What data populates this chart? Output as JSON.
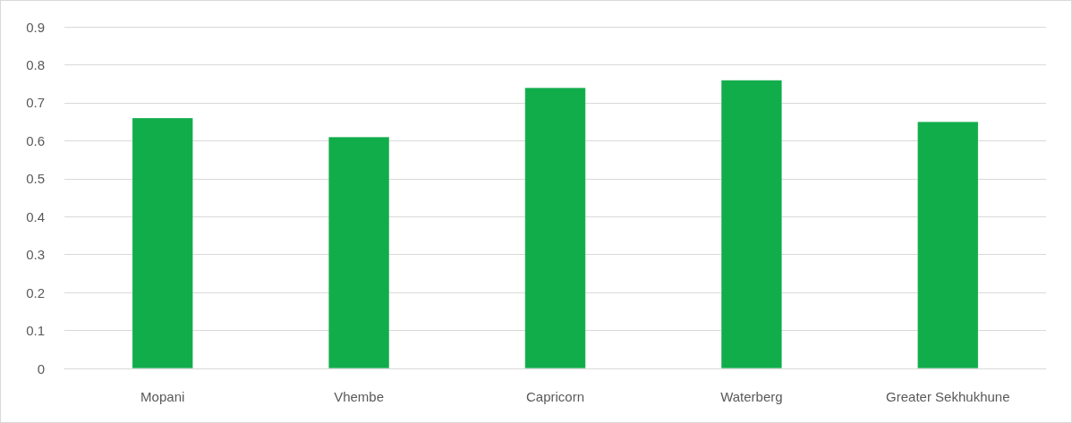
{
  "chart_data": {
    "type": "bar",
    "categories": [
      "Mopani",
      "Vhembe",
      "Capricorn",
      "Waterberg",
      "Greater Sekhukhune"
    ],
    "values": [
      0.66,
      0.61,
      0.74,
      0.76,
      0.65
    ],
    "color": "#12ad4b",
    "ylim": [
      0,
      0.9
    ],
    "yticks": [
      0,
      0.1,
      0.2,
      0.3,
      0.4,
      0.5,
      0.6,
      0.7,
      0.8,
      0.9
    ],
    "grid": "y"
  }
}
